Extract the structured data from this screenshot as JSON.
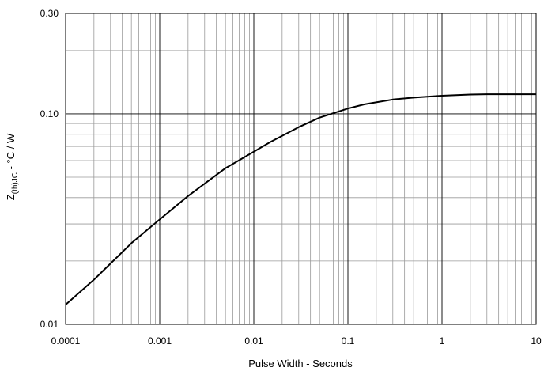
{
  "chart_data": {
    "type": "line",
    "x_scale": "log",
    "y_scale": "log",
    "xlim": [
      0.0001,
      10
    ],
    "ylim": [
      0.01,
      0.3
    ],
    "grid": true,
    "legend": "none",
    "xlabel": "Pulse Width - Seconds",
    "ylabel_main": "Z",
    "ylabel_sub": "(th)JC",
    "ylabel_rest": " - °C / W",
    "x_ticks": [
      {
        "value": 0.0001,
        "label": "0.0001"
      },
      {
        "value": 0.001,
        "label": "0.001"
      },
      {
        "value": 0.01,
        "label": "0.01"
      },
      {
        "value": 0.1,
        "label": "0.1"
      },
      {
        "value": 1,
        "label": "1"
      },
      {
        "value": 10,
        "label": "10"
      }
    ],
    "y_ticks": [
      {
        "value": 0.01,
        "label": "0.01"
      },
      {
        "value": 0.1,
        "label": "0.10"
      },
      {
        "value": 0.3,
        "label": "0.30"
      }
    ],
    "series": [
      {
        "line_color": "#000000",
        "x": [
          0.0001,
          0.0002,
          0.0005,
          0.001,
          0.002,
          0.005,
          0.01,
          0.015,
          0.03,
          0.05,
          0.1,
          0.15,
          0.3,
          0.5,
          1,
          2,
          3,
          5,
          10
        ],
        "y": [
          0.0124,
          0.0163,
          0.0243,
          0.0315,
          0.0407,
          0.0552,
          0.0661,
          0.0735,
          0.0865,
          0.096,
          0.106,
          0.111,
          0.117,
          0.1195,
          0.122,
          0.1235,
          0.124,
          0.124,
          0.124
        ]
      }
    ]
  }
}
